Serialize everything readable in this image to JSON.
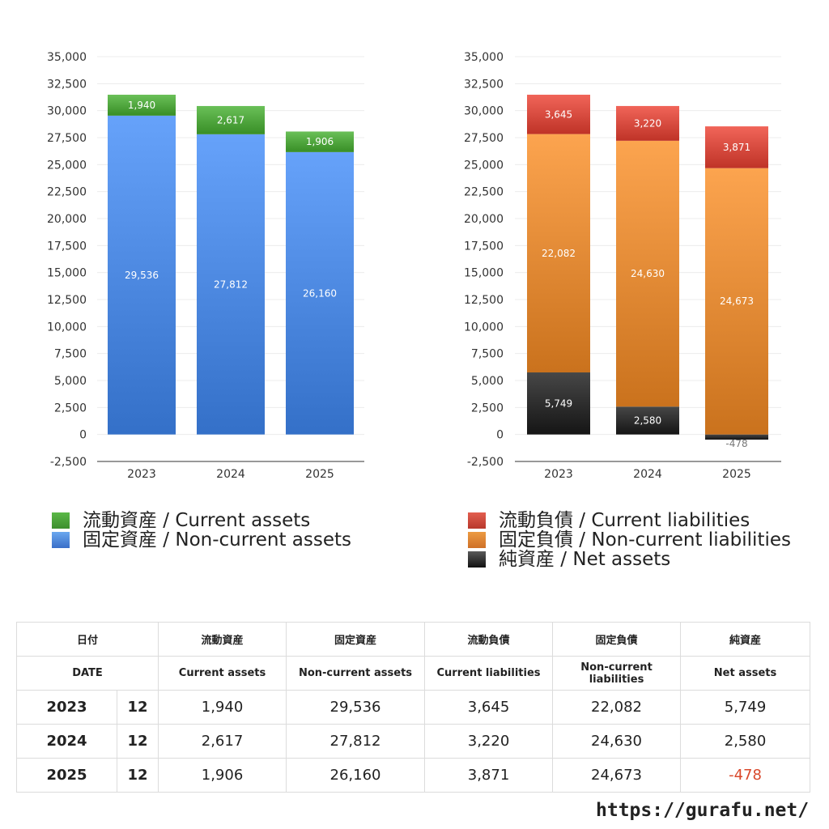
{
  "chart_data": [
    {
      "type": "bar",
      "stacked": true,
      "categories": [
        "2023",
        "2024",
        "2025"
      ],
      "ylim": [
        -2500,
        35000
      ],
      "yticks": [
        "35,000",
        "32,500",
        "30,000",
        "27,500",
        "25,000",
        "22,500",
        "20,000",
        "17,500",
        "15,000",
        "12,500",
        "10,000",
        "7,500",
        "5,000",
        "2,500",
        "0",
        "-2,500"
      ],
      "grid": true,
      "legend_position": "bottom-left",
      "series": [
        {
          "name": "固定資産 / Non-current assets",
          "values": [
            29536,
            27812,
            26160
          ],
          "labels": [
            "29,536",
            "27,812",
            "26,160"
          ],
          "color": "#4a86de"
        },
        {
          "name": "流動資産 / Current assets",
          "values": [
            1940,
            2617,
            1906
          ],
          "labels": [
            "1,940",
            "2,617",
            "1,906"
          ],
          "color": "#4ea43c"
        }
      ],
      "legend": [
        {
          "name": "流動資産 / Current assets",
          "color": "#4ea43c"
        },
        {
          "name": "固定資産 / Non-current assets",
          "color": "#4a86de"
        }
      ]
    },
    {
      "type": "bar",
      "stacked": true,
      "categories": [
        "2023",
        "2024",
        "2025"
      ],
      "ylim": [
        -2500,
        35000
      ],
      "yticks": [
        "35,000",
        "32,500",
        "30,000",
        "27,500",
        "25,000",
        "22,500",
        "20,000",
        "17,500",
        "15,000",
        "12,500",
        "10,000",
        "7,500",
        "5,000",
        "2,500",
        "0",
        "-2,500"
      ],
      "grid": true,
      "legend_position": "bottom-left",
      "series": [
        {
          "name": "純資産 / Net assets",
          "values": [
            5749,
            2580,
            -478
          ],
          "labels": [
            "5,749",
            "2,580",
            "-478"
          ],
          "color": "#2b2b2b"
        },
        {
          "name": "固定負債 / Non-current liabilities",
          "values": [
            22082,
            24630,
            24673
          ],
          "labels": [
            "22,082",
            "24,630",
            "24,673"
          ],
          "color": "#e08833"
        },
        {
          "name": "流動負債 / Current liabilities",
          "values": [
            3645,
            3220,
            3871
          ],
          "labels": [
            "3,645",
            "3,220",
            "3,871"
          ],
          "color": "#d5493d"
        }
      ],
      "legend": [
        {
          "name": "流動負債 / Current liabilities",
          "color": "#d5493d"
        },
        {
          "name": "固定負債 / Non-current liabilities",
          "color": "#e08833"
        },
        {
          "name": "純資産 / Net assets",
          "color": "#2b2b2b"
        }
      ]
    }
  ],
  "table": {
    "header_jp": {
      "date": "日付",
      "current_assets": "流動資産",
      "noncurrent_assets": "固定資産",
      "current_liabilities": "流動負債",
      "noncurrent_liabilities": "固定負債",
      "net_assets": "純資産"
    },
    "header_en": {
      "date": "DATE",
      "current_assets": "Current assets",
      "noncurrent_assets": "Non-current assets",
      "current_liabilities": "Current liabilities",
      "noncurrent_liabilities": "Non-current liabilities",
      "net_assets": "Net assets"
    },
    "rows": [
      {
        "year": "2023",
        "month": "12",
        "current_assets": "1,940",
        "noncurrent_assets": "29,536",
        "current_liabilities": "3,645",
        "noncurrent_liabilities": "22,082",
        "net_assets": "5,749"
      },
      {
        "year": "2024",
        "month": "12",
        "current_assets": "2,617",
        "noncurrent_assets": "27,812",
        "current_liabilities": "3,220",
        "noncurrent_liabilities": "24,630",
        "net_assets": "2,580"
      },
      {
        "year": "2025",
        "month": "12",
        "current_assets": "1,906",
        "noncurrent_assets": "26,160",
        "current_liabilities": "3,871",
        "noncurrent_liabilities": "24,673",
        "net_assets": "-478"
      }
    ]
  },
  "footer": {
    "url": "https://gurafu.net/"
  }
}
